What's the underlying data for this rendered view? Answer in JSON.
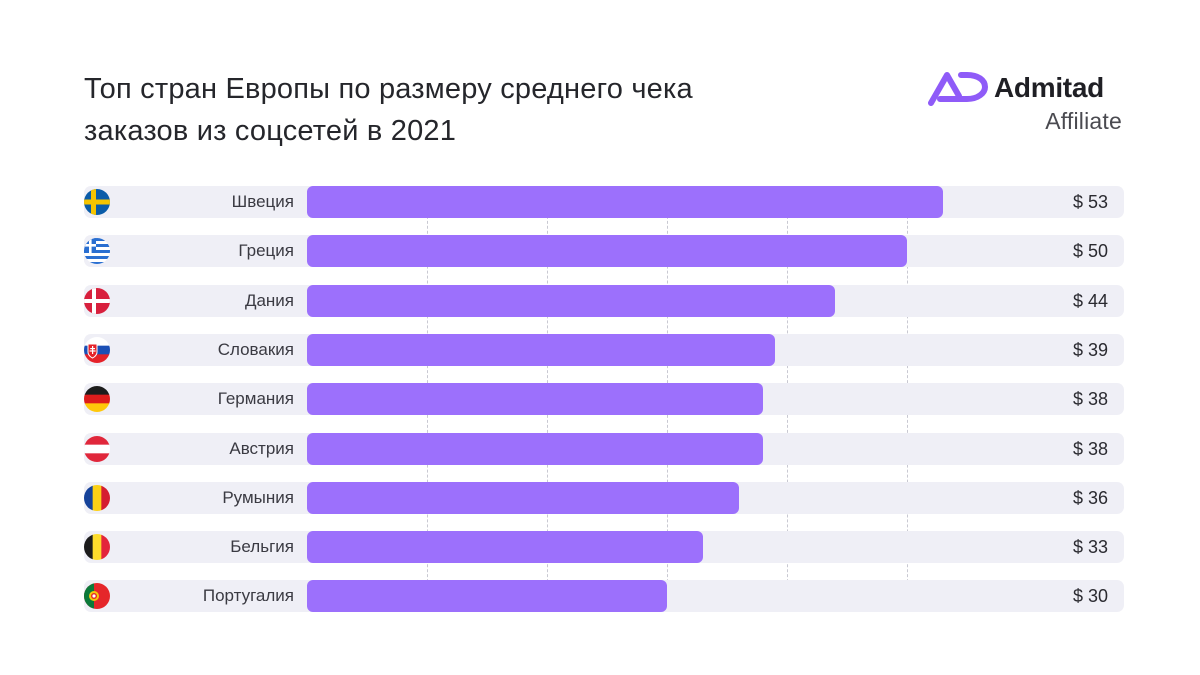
{
  "title_lines": [
    "Топ стран Европы по размеру среднего чека",
    "заказов из соцсетей в 2021"
  ],
  "logo": {
    "name": "Admitad",
    "subtitle": "Affiliate",
    "mark_icon": "admitad-logo-icon",
    "mark_color": "#8f5bf8"
  },
  "colors": {
    "bar": "#9c70fc",
    "row_background": "#efeff6",
    "grid": "#c9c9d2"
  },
  "chart_data": {
    "type": "bar",
    "orientation": "horizontal",
    "title": "Топ стран Европы по размеру среднего чека заказов из соцсетей в 2021",
    "categories": [
      "Швеция",
      "Греция",
      "Дания",
      "Словакия",
      "Германия",
      "Австрия",
      "Румыния",
      "Бельгия",
      "Португалия"
    ],
    "values": [
      53,
      50,
      44,
      39,
      38,
      38,
      36,
      33,
      30
    ],
    "value_labels": [
      "$ 53",
      "$ 50",
      "$ 44",
      "$ 39",
      "$ 38",
      "$ 38",
      "$ 36",
      "$ 33",
      "$ 30"
    ],
    "flag_icons": [
      "sweden-flag-icon",
      "greece-flag-icon",
      "denmark-flag-icon",
      "slovakia-flag-icon",
      "germany-flag-icon",
      "austria-flag-icon",
      "romania-flag-icon",
      "belgium-flag-icon",
      "portugal-flag-icon"
    ],
    "xlim": [
      0,
      60
    ],
    "grid": true,
    "grid_step": 10
  }
}
